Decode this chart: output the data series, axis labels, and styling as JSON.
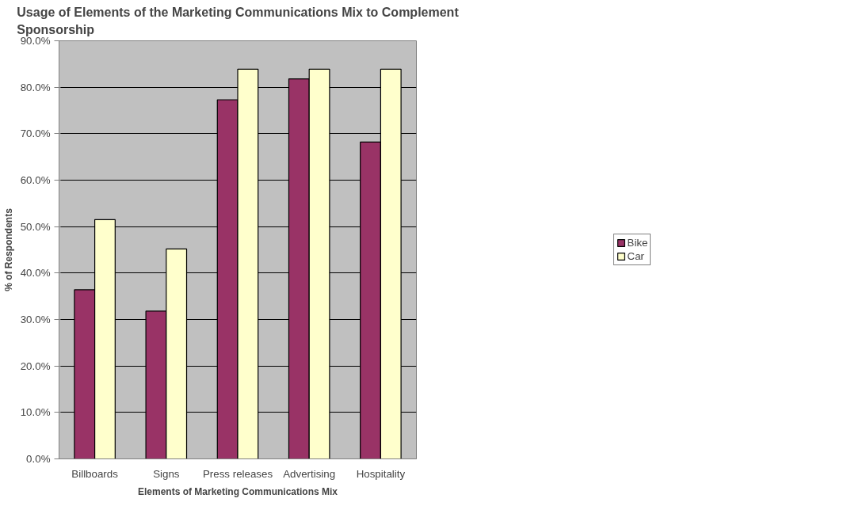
{
  "chart_data": {
    "type": "bar",
    "title": "Usage of Elements of the Marketing Communications Mix to Complement Sponsorship",
    "xlabel": "Elements of Marketing Communications Mix",
    "ylabel": "% of Respondents",
    "categories": [
      "Billboards",
      "Signs",
      "Press releases",
      "Advertising",
      "Hospitality"
    ],
    "series": [
      {
        "name": "Bike",
        "color": "#993366",
        "values": [
          36.4,
          31.8,
          77.3,
          81.8,
          68.2
        ]
      },
      {
        "name": "Car",
        "color": "#ffffcc",
        "values": [
          51.5,
          45.2,
          83.9,
          83.9,
          83.9
        ]
      }
    ],
    "ylim": [
      0,
      90
    ],
    "yticks": [
      {
        "value": 0,
        "label": "0.0%"
      },
      {
        "value": 10,
        "label": "10.0%"
      },
      {
        "value": 20,
        "label": "20.0%"
      },
      {
        "value": 30,
        "label": "30.0%"
      },
      {
        "value": 40,
        "label": "40.0%"
      },
      {
        "value": 50,
        "label": "50.0%"
      },
      {
        "value": 60,
        "label": "60.0%"
      },
      {
        "value": 70,
        "label": "70.0%"
      },
      {
        "value": 80,
        "label": "80.0%"
      },
      {
        "value": 90,
        "label": "90.0%"
      }
    ],
    "grid": "y",
    "legend": "right"
  }
}
